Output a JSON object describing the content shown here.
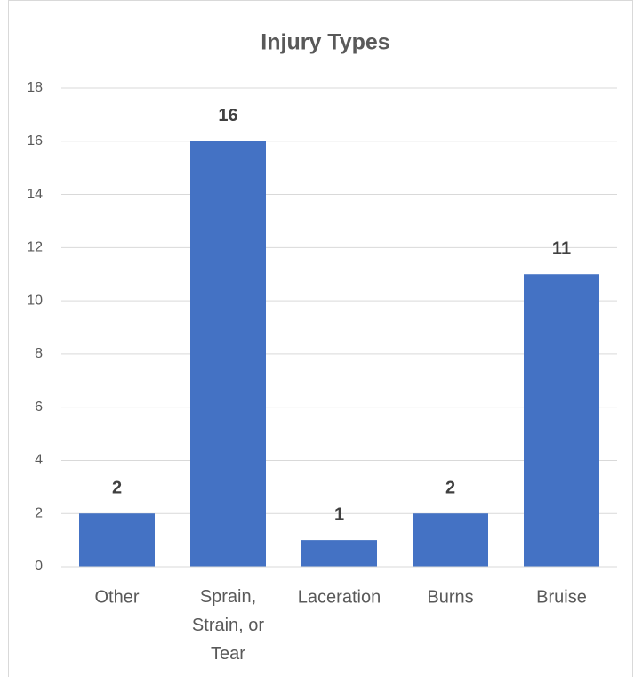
{
  "chart_data": {
    "type": "bar",
    "title": "Injury Types",
    "categories": [
      "Other",
      "Sprain, Strain, or Tear",
      "Laceration",
      "Burns",
      "Bruise"
    ],
    "values": [
      2,
      16,
      1,
      2,
      11
    ],
    "color": "#4472c4",
    "ylim": [
      0,
      18
    ],
    "yticks": [
      0,
      2,
      4,
      6,
      8,
      10,
      12,
      14,
      16,
      18
    ],
    "grid": true,
    "data_labels": true
  }
}
